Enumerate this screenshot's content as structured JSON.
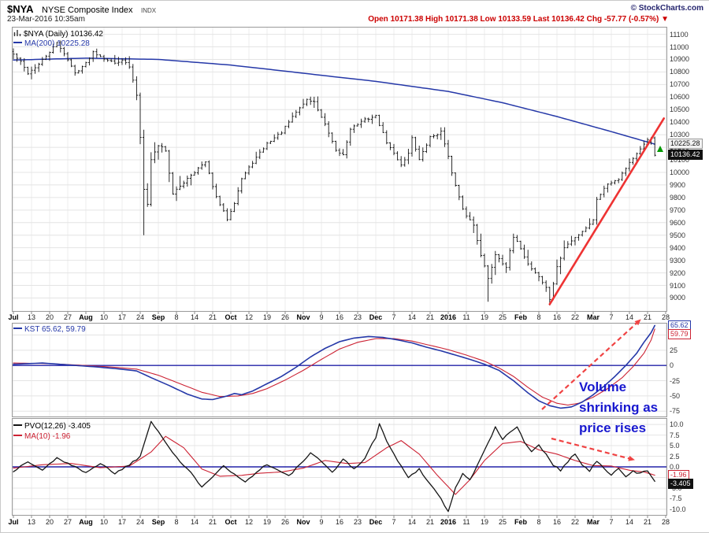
{
  "header": {
    "symbol": "$NYA",
    "name": "NYSE Composite Index",
    "exchange": "INDX",
    "copyright": "© StockCharts.com",
    "datetime": "23-Mar-2016 10:35am",
    "quote": "Open 10171.38 High 10171.38 Low 10133.59 Last 10136.42 Chg -57.77 (-0.57%) ▼"
  },
  "main": {
    "legend_title": "$NYA (Daily) 10136.42",
    "legend_ma": "MA(200) 10225.28",
    "badge_ma": "10225.28",
    "badge_last": "10136.42"
  },
  "kst": {
    "legend": "KST 65.62, 59.79",
    "badge_kst": "65.62",
    "badge_signal": "59.79"
  },
  "pvo": {
    "legend_pvo": "PVO(12,26) -3.405",
    "legend_ma": "MA(10) -1.96",
    "badge_ma": "-1.96",
    "badge_pvo": "-3.405"
  },
  "annotation": {
    "line1": "Volume",
    "line2": "shrinking as",
    "line3": "price rises"
  },
  "colors": {
    "bars": "#151515",
    "ma200": "#2538a8",
    "kst": "#2538a8",
    "kst_signal": "#cc2233",
    "pvo": "#151515",
    "pvo_ma": "#cc2233",
    "zero_line": "#2323a8",
    "trendline": "#ee3333",
    "arrows": "#f04343",
    "annotation": "#1818cf",
    "quote_down": "#cc0000",
    "grid": "#e4e4e4",
    "grid_vertical": "#ececec",
    "panel_border": "#999999"
  },
  "chart_data": {
    "type": "multi-panel-timeseries",
    "description": "Daily chart Jul 2015 - Mar 2016; weekly x ticks; anchors are [tradingDayIndex, value] read from the chart",
    "x_ticks": [
      "Jul",
      "13",
      "20",
      "27",
      "Aug",
      "10",
      "17",
      "24",
      "Sep",
      "8",
      "14",
      "21",
      "Oct",
      "12",
      "19",
      "26",
      "Nov",
      "9",
      "16",
      "23",
      "Dec",
      "7",
      "14",
      "21",
      "2016",
      "11",
      "19",
      "25",
      "Feb",
      "8",
      "16",
      "22",
      "Mar",
      "7",
      "14",
      "21",
      "28"
    ],
    "days_per_tick": 5,
    "last_day": 177,
    "panels": [
      {
        "id": "price",
        "type": "ohlc",
        "title": "$NYA (Daily)",
        "last_close": 10136.42,
        "ylim": [
          8890,
          11160
        ],
        "y_ticks": [
          9000,
          9100,
          9200,
          9300,
          9400,
          9500,
          9600,
          9700,
          9800,
          9900,
          10000,
          10100,
          10200,
          10300,
          10400,
          10500,
          10600,
          10700,
          10800,
          10900,
          11000,
          11100
        ],
        "close_anchors": [
          [
            0,
            10940
          ],
          [
            2,
            10880
          ],
          [
            4,
            10790
          ],
          [
            7,
            10860
          ],
          [
            10,
            10960
          ],
          [
            12,
            11030
          ],
          [
            14,
            10950
          ],
          [
            17,
            10790
          ],
          [
            20,
            10870
          ],
          [
            22,
            10960
          ],
          [
            25,
            10910
          ],
          [
            28,
            10870
          ],
          [
            30,
            10900
          ],
          [
            32,
            10840
          ],
          [
            34,
            10620
          ],
          [
            35,
            10280
          ],
          [
            36,
            9880
          ],
          [
            37,
            9760
          ],
          [
            38,
            10100
          ],
          [
            40,
            10220
          ],
          [
            42,
            10180
          ],
          [
            44,
            9820
          ],
          [
            46,
            9890
          ],
          [
            48,
            9960
          ],
          [
            50,
            10010
          ],
          [
            53,
            10080
          ],
          [
            56,
            9800
          ],
          [
            59,
            9630
          ],
          [
            61,
            9760
          ],
          [
            63,
            9950
          ],
          [
            66,
            10080
          ],
          [
            70,
            10230
          ],
          [
            74,
            10320
          ],
          [
            78,
            10480
          ],
          [
            81,
            10580
          ],
          [
            83,
            10560
          ],
          [
            86,
            10380
          ],
          [
            89,
            10170
          ],
          [
            91,
            10140
          ],
          [
            93,
            10350
          ],
          [
            97,
            10420
          ],
          [
            100,
            10450
          ],
          [
            103,
            10240
          ],
          [
            107,
            10060
          ],
          [
            109,
            10150
          ],
          [
            110,
            10280
          ],
          [
            112,
            10100
          ],
          [
            115,
            10280
          ],
          [
            118,
            10320
          ],
          [
            120,
            10140
          ],
          [
            121,
            9990
          ],
          [
            124,
            9700
          ],
          [
            127,
            9580
          ],
          [
            129,
            9350
          ],
          [
            131,
            9150
          ],
          [
            133,
            9350
          ],
          [
            136,
            9250
          ],
          [
            138,
            9480
          ],
          [
            140,
            9400
          ],
          [
            142,
            9270
          ],
          [
            145,
            9170
          ],
          [
            147,
            9080
          ],
          [
            148,
            8990
          ],
          [
            150,
            9240
          ],
          [
            152,
            9400
          ],
          [
            155,
            9480
          ],
          [
            158,
            9560
          ],
          [
            160,
            9620
          ],
          [
            161,
            9790
          ],
          [
            164,
            9910
          ],
          [
            167,
            9950
          ],
          [
            170,
            10080
          ],
          [
            173,
            10180
          ],
          [
            175,
            10260
          ],
          [
            176,
            10280
          ],
          [
            177,
            10136.42
          ]
        ],
        "special_lows": {
          "36": 9500,
          "131": 8970,
          "148": 8940
        },
        "ma200_last": 10225.28,
        "ma200_anchors": [
          [
            0,
            10895
          ],
          [
            20,
            10910
          ],
          [
            40,
            10900
          ],
          [
            60,
            10855
          ],
          [
            80,
            10790
          ],
          [
            100,
            10725
          ],
          [
            120,
            10645
          ],
          [
            135,
            10555
          ],
          [
            150,
            10445
          ],
          [
            165,
            10325
          ],
          [
            177,
            10225.28
          ]
        ],
        "trendline": {
          "from": [
            148,
            8950
          ],
          "to": [
            179.5,
            10430
          ]
        }
      },
      {
        "id": "kst",
        "type": "line",
        "ylim": [
          -85,
          70
        ],
        "y_ticks": [
          50,
          25,
          0,
          -25,
          -50,
          -75
        ],
        "zero_line": true,
        "kst_last": 65.62,
        "signal_last": 59.79,
        "kst_anchors": [
          [
            0,
            2
          ],
          [
            8,
            4
          ],
          [
            15,
            1
          ],
          [
            22,
            -2
          ],
          [
            28,
            -5
          ],
          [
            34,
            -9
          ],
          [
            38,
            -20
          ],
          [
            43,
            -33
          ],
          [
            48,
            -47
          ],
          [
            52,
            -55
          ],
          [
            55,
            -56
          ],
          [
            59,
            -50
          ],
          [
            61,
            -46
          ],
          [
            63,
            -48
          ],
          [
            66,
            -42
          ],
          [
            70,
            -30
          ],
          [
            74,
            -18
          ],
          [
            78,
            -3
          ],
          [
            82,
            14
          ],
          [
            86,
            28
          ],
          [
            90,
            39
          ],
          [
            94,
            45
          ],
          [
            98,
            47.5
          ],
          [
            102,
            46
          ],
          [
            106,
            42
          ],
          [
            110,
            37
          ],
          [
            114,
            30
          ],
          [
            118,
            24
          ],
          [
            122,
            17
          ],
          [
            126,
            10
          ],
          [
            130,
            2
          ],
          [
            134,
            -8
          ],
          [
            138,
            -25
          ],
          [
            142,
            -45
          ],
          [
            145,
            -58
          ],
          [
            148,
            -66
          ],
          [
            151,
            -70
          ],
          [
            154,
            -68
          ],
          [
            157,
            -60
          ],
          [
            160,
            -48
          ],
          [
            163,
            -34
          ],
          [
            166,
            -18
          ],
          [
            169,
            0
          ],
          [
            172,
            20
          ],
          [
            174,
            38
          ],
          [
            176,
            54
          ],
          [
            177,
            65.62
          ]
        ],
        "signal_anchors": [
          [
            0,
            4
          ],
          [
            10,
            3
          ],
          [
            20,
            0
          ],
          [
            28,
            -3
          ],
          [
            34,
            -6
          ],
          [
            40,
            -16
          ],
          [
            46,
            -30
          ],
          [
            52,
            -44
          ],
          [
            57,
            -51
          ],
          [
            62,
            -50
          ],
          [
            66,
            -46
          ],
          [
            70,
            -38
          ],
          [
            75,
            -24
          ],
          [
            80,
            -8
          ],
          [
            85,
            10
          ],
          [
            90,
            27
          ],
          [
            95,
            38
          ],
          [
            100,
            44
          ],
          [
            105,
            44
          ],
          [
            110,
            40
          ],
          [
            115,
            33
          ],
          [
            120,
            26
          ],
          [
            125,
            17
          ],
          [
            130,
            7
          ],
          [
            134,
            -4
          ],
          [
            138,
            -18
          ],
          [
            142,
            -36
          ],
          [
            146,
            -52
          ],
          [
            150,
            -62
          ],
          [
            153,
            -65
          ],
          [
            156,
            -62
          ],
          [
            160,
            -52
          ],
          [
            164,
            -38
          ],
          [
            168,
            -20
          ],
          [
            171,
            -2
          ],
          [
            174,
            20
          ],
          [
            176,
            42
          ],
          [
            177,
            59.79
          ]
        ]
      },
      {
        "id": "pvo",
        "type": "line",
        "ylim": [
          -11.5,
          11.5
        ],
        "y_ticks": [
          10,
          7.5,
          5,
          2.5,
          0,
          -2.5,
          -5,
          -7.5,
          -10
        ],
        "zero_line": true,
        "pvo_last": -3.405,
        "ma_last": -1.96,
        "pvo_anchors": [
          [
            0,
            -1
          ],
          [
            4,
            1.2
          ],
          [
            8,
            -0.8
          ],
          [
            12,
            2.2
          ],
          [
            16,
            0.3
          ],
          [
            20,
            -1.2
          ],
          [
            24,
            0.8
          ],
          [
            28,
            -1.5
          ],
          [
            32,
            0.5
          ],
          [
            35,
            2.5
          ],
          [
            38,
            10.8
          ],
          [
            40,
            8.5
          ],
          [
            43,
            4.5
          ],
          [
            46,
            1.2
          ],
          [
            49,
            -1.5
          ],
          [
            52,
            -4.6
          ],
          [
            55,
            -2.2
          ],
          [
            58,
            0.4
          ],
          [
            61,
            -1.8
          ],
          [
            64,
            -3.6
          ],
          [
            67,
            -1.2
          ],
          [
            70,
            0.6
          ],
          [
            73,
            -0.8
          ],
          [
            76,
            -2.2
          ],
          [
            79,
            0.5
          ],
          [
            82,
            3.2
          ],
          [
            85,
            1.2
          ],
          [
            88,
            -1.2
          ],
          [
            91,
            1.8
          ],
          [
            94,
            -0.5
          ],
          [
            97,
            2
          ],
          [
            100,
            7
          ],
          [
            101,
            10.4
          ],
          [
            103,
            6
          ],
          [
            106,
            1.5
          ],
          [
            109,
            -2.5
          ],
          [
            112,
            -0.5
          ],
          [
            115,
            -4
          ],
          [
            118,
            -7.5
          ],
          [
            120,
            -10.6
          ],
          [
            122,
            -5
          ],
          [
            124,
            -1.5
          ],
          [
            126,
            -3.2
          ],
          [
            128,
            0.5
          ],
          [
            131,
            5.5
          ],
          [
            133,
            9.3
          ],
          [
            135,
            6.5
          ],
          [
            137,
            8
          ],
          [
            139,
            9.6
          ],
          [
            141,
            6
          ],
          [
            143,
            3.5
          ],
          [
            145,
            5.2
          ],
          [
            147,
            3
          ],
          [
            149,
            0.5
          ],
          [
            151,
            -0.8
          ],
          [
            153,
            1.2
          ],
          [
            155,
            3.2
          ],
          [
            157,
            0.5
          ],
          [
            159,
            -1
          ],
          [
            161,
            1.4
          ],
          [
            163,
            -0.5
          ],
          [
            165,
            -1.8
          ],
          [
            167,
            -0.5
          ],
          [
            169,
            -2.4
          ],
          [
            171,
            -1
          ],
          [
            173,
            -1.6
          ],
          [
            175,
            -0.8
          ],
          [
            177,
            -3.405
          ]
        ],
        "ma_anchors": [
          [
            0,
            -0.3
          ],
          [
            8,
            0.5
          ],
          [
            16,
            0.8
          ],
          [
            24,
            -0.2
          ],
          [
            32,
            0.2
          ],
          [
            38,
            3.5
          ],
          [
            42,
            7.2
          ],
          [
            47,
            4.5
          ],
          [
            52,
            -0.5
          ],
          [
            57,
            -2.2
          ],
          [
            63,
            -2
          ],
          [
            68,
            -1.5
          ],
          [
            74,
            -1.2
          ],
          [
            80,
            -0.3
          ],
          [
            86,
            1.5
          ],
          [
            92,
            0.8
          ],
          [
            97,
            1
          ],
          [
            103,
            4.5
          ],
          [
            107,
            6.2
          ],
          [
            112,
            3
          ],
          [
            117,
            -2
          ],
          [
            122,
            -6.5
          ],
          [
            126,
            -3
          ],
          [
            130,
            1.5
          ],
          [
            135,
            5.5
          ],
          [
            140,
            6
          ],
          [
            145,
            4
          ],
          [
            150,
            3
          ],
          [
            155,
            1.5
          ],
          [
            160,
            0.3
          ],
          [
            165,
            0.2
          ],
          [
            170,
            -0.8
          ],
          [
            174,
            -1.2
          ],
          [
            177,
            -1.96
          ]
        ]
      }
    ]
  }
}
